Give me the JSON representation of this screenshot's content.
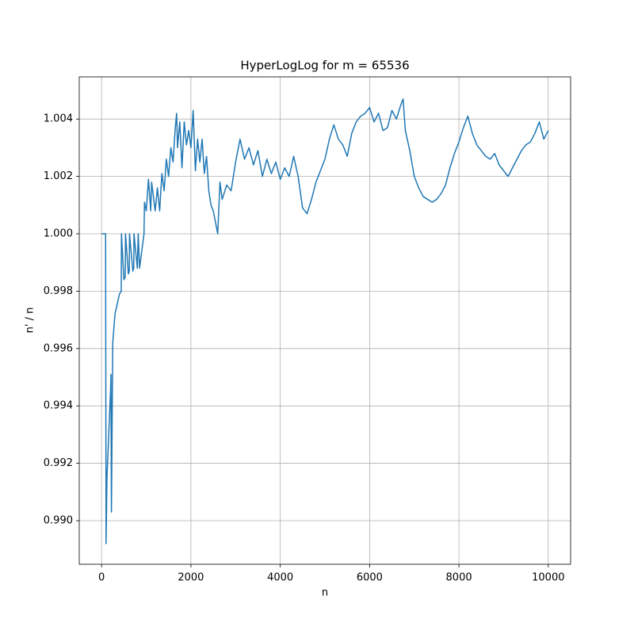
{
  "chart_data": {
    "type": "line",
    "title": "HyperLogLog for m = 65536",
    "x_label": "n",
    "y_label": "n' / n",
    "xlim": [
      -500,
      10500
    ],
    "ylim": [
      0.98848,
      1.00547
    ],
    "xticks": [
      0,
      2000,
      4000,
      6000,
      8000,
      10000
    ],
    "yticks": [
      {
        "value": 0.99,
        "label": "0.990"
      },
      0.992,
      0.994,
      0.996,
      0.998,
      {
        "value": 1.0,
        "label": "1.000"
      },
      1.002,
      1.004
    ],
    "grid": true,
    "series": [
      {
        "color": "#1f77b4",
        "x": [
          0,
          90,
          100,
          120,
          200,
          210,
          220,
          250,
          300,
          400,
          440,
          445,
          500,
          530,
          535,
          600,
          620,
          625,
          700,
          720,
          725,
          800,
          820,
          850,
          950,
          960,
          1000,
          1050,
          1100,
          1120,
          1200,
          1250,
          1300,
          1350,
          1400,
          1450,
          1500,
          1550,
          1600,
          1650,
          1680,
          1700,
          1750,
          1800,
          1850,
          1900,
          1950,
          2000,
          2050,
          2100,
          2150,
          2200,
          2250,
          2300,
          2350,
          2400,
          2450,
          2500,
          2550,
          2600,
          2650,
          2700,
          2800,
          2900,
          3000,
          3100,
          3200,
          3300,
          3400,
          3500,
          3600,
          3700,
          3800,
          3900,
          4000,
          4100,
          4200,
          4300,
          4400,
          4500,
          4600,
          4700,
          4800,
          4900,
          5000,
          5100,
          5200,
          5300,
          5400,
          5500,
          5600,
          5700,
          5800,
          5900,
          6000,
          6100,
          6200,
          6300,
          6400,
          6500,
          6600,
          6700,
          6750,
          6800,
          6900,
          7000,
          7100,
          7200,
          7300,
          7400,
          7500,
          7600,
          7700,
          7800,
          7900,
          8000,
          8100,
          8200,
          8300,
          8400,
          8500,
          8600,
          8700,
          8800,
          8900,
          9000,
          9100,
          9200,
          9300,
          9400,
          9500,
          9600,
          9700,
          9800,
          9900,
          10000
        ],
        "values": [
          1.0,
          1.0,
          0.9892,
          0.9915,
          0.9945,
          0.9951,
          0.9903,
          0.9962,
          0.9972,
          0.9979,
          0.998,
          1.0,
          0.9984,
          0.9985,
          1.0,
          0.9986,
          0.9987,
          1.0,
          0.9987,
          0.9988,
          1.0,
          0.9988,
          1.0,
          0.9988,
          1.0,
          1.0011,
          1.0008,
          1.0019,
          1.0008,
          1.0018,
          1.0008,
          1.0016,
          1.0008,
          1.0021,
          1.0015,
          1.0026,
          1.002,
          1.003,
          1.0025,
          1.0037,
          1.0042,
          1.003,
          1.0039,
          1.0023,
          1.0039,
          1.0031,
          1.0036,
          1.003,
          1.0043,
          1.0022,
          1.0033,
          1.0025,
          1.0033,
          1.0021,
          1.0027,
          1.0015,
          1.001,
          1.0008,
          1.0004,
          1.0,
          1.0018,
          1.0012,
          1.0017,
          1.0015,
          1.0025,
          1.0033,
          1.0026,
          1.003,
          1.0024,
          1.0029,
          1.002,
          1.0026,
          1.0021,
          1.0025,
          1.0019,
          1.0023,
          1.002,
          1.0027,
          1.002,
          1.0009,
          1.0007,
          1.0012,
          1.0018,
          1.0022,
          1.0026,
          1.0033,
          1.0038,
          1.0033,
          1.0031,
          1.0027,
          1.0035,
          1.0039,
          1.0041,
          1.0042,
          1.0044,
          1.0039,
          1.0042,
          1.0036,
          1.0037,
          1.0043,
          1.004,
          1.0045,
          1.0047,
          1.0036,
          1.0029,
          1.002,
          1.0016,
          1.0013,
          1.0012,
          1.0011,
          1.0012,
          1.0014,
          1.0017,
          1.0023,
          1.0028,
          1.0032,
          1.0037,
          1.0041,
          1.0035,
          1.0031,
          1.0029,
          1.0027,
          1.0026,
          1.0028,
          1.0024,
          1.0022,
          1.002,
          1.0023,
          1.0026,
          1.0029,
          1.0031,
          1.0032,
          1.0035,
          1.0039,
          1.0033,
          1.0036
        ]
      }
    ]
  }
}
